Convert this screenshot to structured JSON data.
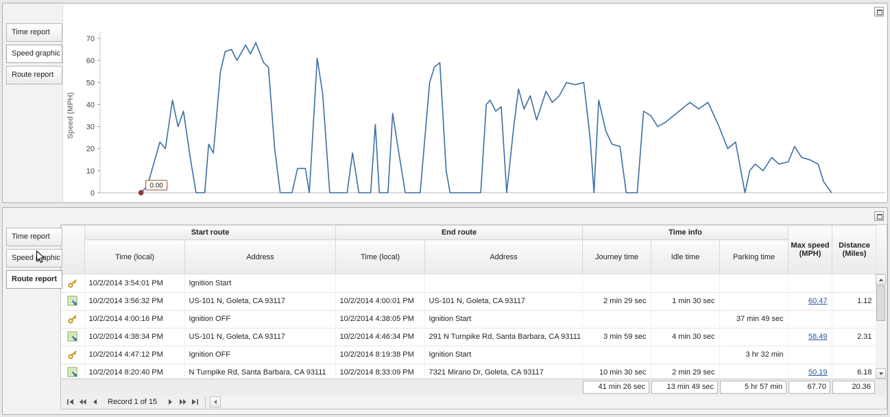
{
  "theme": {
    "link_color": "#2456a4",
    "chart_line_color": "#3a6ea5",
    "marker_color": "#9e3a38",
    "annotation_border": "#9c4a36"
  },
  "top_panel": {
    "tabs": [
      {
        "label": "Time report",
        "selected": false
      },
      {
        "label": "Speed graphic",
        "selected": true
      },
      {
        "label": "Route report",
        "selected": false
      }
    ]
  },
  "bottom_panel": {
    "tabs": [
      {
        "label": "Time report",
        "selected": false
      },
      {
        "label": "Speed graphic",
        "selected": false
      },
      {
        "label": "Route report",
        "selected": true
      }
    ]
  },
  "chart_data": {
    "type": "line",
    "title": "",
    "xlabel": "",
    "ylabel": "Speed (MPH)",
    "ylim": [
      0,
      70
    ],
    "yticks": [
      0,
      10,
      20,
      30,
      40,
      50,
      60,
      70
    ],
    "grid": false,
    "legend": "none",
    "line_color": "#3a6ea5",
    "annotation": {
      "label": "0.00",
      "at_first_point": true
    },
    "points": [
      [
        0.052,
        0
      ],
      [
        0.06,
        3
      ],
      [
        0.076,
        23
      ],
      [
        0.083,
        20
      ],
      [
        0.092,
        42
      ],
      [
        0.099,
        30
      ],
      [
        0.106,
        37
      ],
      [
        0.115,
        15
      ],
      [
        0.122,
        0
      ],
      [
        0.133,
        0
      ],
      [
        0.138,
        22
      ],
      [
        0.144,
        18
      ],
      [
        0.153,
        55
      ],
      [
        0.159,
        64
      ],
      [
        0.167,
        65
      ],
      [
        0.174,
        60
      ],
      [
        0.185,
        67
      ],
      [
        0.191,
        63
      ],
      [
        0.198,
        68
      ],
      [
        0.208,
        59
      ],
      [
        0.214,
        57
      ],
      [
        0.222,
        20
      ],
      [
        0.229,
        0
      ],
      [
        0.244,
        0
      ],
      [
        0.251,
        11
      ],
      [
        0.261,
        11
      ],
      [
        0.266,
        0
      ],
      [
        0.271,
        30
      ],
      [
        0.276,
        61
      ],
      [
        0.283,
        45
      ],
      [
        0.292,
        0
      ],
      [
        0.314,
        0
      ],
      [
        0.321,
        18
      ],
      [
        0.329,
        0
      ],
      [
        0.344,
        0
      ],
      [
        0.35,
        31
      ],
      [
        0.355,
        0
      ],
      [
        0.366,
        0
      ],
      [
        0.372,
        36
      ],
      [
        0.379,
        20
      ],
      [
        0.388,
        0
      ],
      [
        0.407,
        0
      ],
      [
        0.419,
        50
      ],
      [
        0.425,
        57
      ],
      [
        0.432,
        59
      ],
      [
        0.44,
        10
      ],
      [
        0.445,
        0
      ],
      [
        0.484,
        0
      ],
      [
        0.491,
        40
      ],
      [
        0.496,
        42
      ],
      [
        0.503,
        37
      ],
      [
        0.51,
        39
      ],
      [
        0.517,
        0
      ],
      [
        0.526,
        30
      ],
      [
        0.532,
        47
      ],
      [
        0.539,
        38
      ],
      [
        0.547,
        44
      ],
      [
        0.555,
        33
      ],
      [
        0.567,
        46
      ],
      [
        0.575,
        41
      ],
      [
        0.584,
        44
      ],
      [
        0.593,
        50
      ],
      [
        0.604,
        49
      ],
      [
        0.615,
        50
      ],
      [
        0.623,
        25
      ],
      [
        0.628,
        0
      ],
      [
        0.634,
        42
      ],
      [
        0.643,
        28
      ],
      [
        0.651,
        22
      ],
      [
        0.661,
        21
      ],
      [
        0.669,
        0
      ],
      [
        0.683,
        0
      ],
      [
        0.691,
        37
      ],
      [
        0.7,
        35
      ],
      [
        0.709,
        30
      ],
      [
        0.719,
        32
      ],
      [
        0.75,
        41
      ],
      [
        0.761,
        38
      ],
      [
        0.773,
        41
      ],
      [
        0.787,
        30
      ],
      [
        0.798,
        20
      ],
      [
        0.808,
        23
      ],
      [
        0.82,
        0
      ],
      [
        0.826,
        10
      ],
      [
        0.833,
        13
      ],
      [
        0.843,
        10
      ],
      [
        0.854,
        16
      ],
      [
        0.863,
        13
      ],
      [
        0.875,
        14
      ],
      [
        0.883,
        21
      ],
      [
        0.892,
        16
      ],
      [
        0.902,
        15
      ],
      [
        0.913,
        13
      ],
      [
        0.92,
        5
      ],
      [
        0.93,
        0
      ]
    ]
  },
  "table": {
    "group_headers": [
      "Start route",
      "End route",
      "Time info"
    ],
    "columns": {
      "start_time": "Time (local)",
      "start_address": "Address",
      "end_time": "Time (local)",
      "end_address": "Address",
      "journey_time": "Journey time",
      "idle_time": "Idle time",
      "parking_time": "Parking time",
      "max_speed": "Max speed (MPH)",
      "distance": "Distance (Miles)"
    },
    "rows": [
      {
        "icon": "key",
        "start_time": "10/2/2014 3:54:01 PM",
        "start_address": "Ignition Start",
        "end_time": "",
        "end_address": "",
        "journey_time": "",
        "idle_time": "",
        "parking_time": "",
        "max_speed": "",
        "distance": ""
      },
      {
        "icon": "route",
        "start_time": "10/2/2014 3:56:32 PM",
        "start_address": "US-101 N, Goleta, CA 93117",
        "end_time": "10/2/2014 4:00:01 PM",
        "end_address": "US-101 N, Goleta, CA 93117",
        "journey_time": "2 min 29 sec",
        "idle_time": "1 min 30 sec",
        "parking_time": "",
        "max_speed": "60.47",
        "distance": "1.12"
      },
      {
        "icon": "key",
        "start_time": "10/2/2014 4:00:16 PM",
        "start_address": "Ignition OFF",
        "end_time": "10/2/2014 4:38:05 PM",
        "end_address": "Ignition Start",
        "journey_time": "",
        "idle_time": "",
        "parking_time": "37 min 49 sec",
        "max_speed": "",
        "distance": ""
      },
      {
        "icon": "route",
        "start_time": "10/2/2014 4:38:34 PM",
        "start_address": "US-101 N, Goleta, CA 93117",
        "end_time": "10/2/2014 4:46:34 PM",
        "end_address": "291 N Turnpike Rd, Santa Barbara, CA 93111",
        "journey_time": "3 min 59 sec",
        "idle_time": "4 min 30 sec",
        "parking_time": "",
        "max_speed": "58.49",
        "distance": "2.31"
      },
      {
        "icon": "key",
        "start_time": "10/2/2014 4:47:12 PM",
        "start_address": "Ignition OFF",
        "end_time": "10/2/2014 8:19:38 PM",
        "end_address": "Ignition Start",
        "journey_time": "",
        "idle_time": "",
        "parking_time": "3 hr 32 min",
        "max_speed": "",
        "distance": ""
      },
      {
        "icon": "route",
        "start_time": "10/2/2014 8:20:40 PM",
        "start_address": "N Turnpike Rd, Santa Barbara, CA 93111",
        "end_time": "10/2/2014 8:33:09 PM",
        "end_address": "7321 Mirano Dr, Goleta, CA 93117",
        "journey_time": "10 min 30 sec",
        "idle_time": "2 min 29 sec",
        "parking_time": "",
        "max_speed": "50.19",
        "distance": "6.18"
      }
    ],
    "summary": {
      "journey_time": "41 min 26 sec",
      "idle_time": "13 min 49 sec",
      "parking_time": "5 hr 57 min",
      "max_speed": "67.70",
      "distance": "20.36"
    }
  },
  "navigator": {
    "record_status": "Record 1 of 15"
  }
}
